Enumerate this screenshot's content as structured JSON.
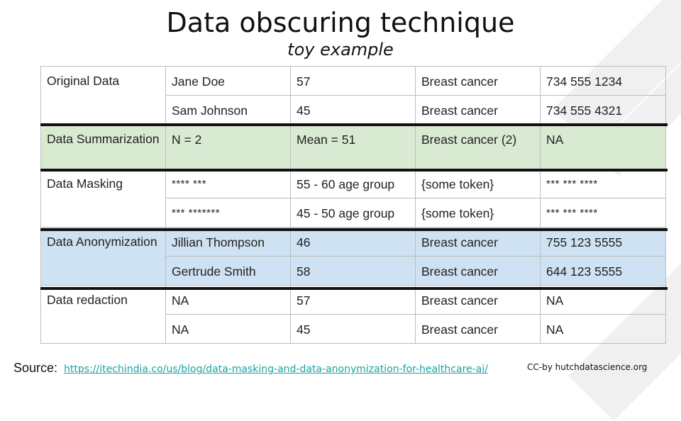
{
  "title": "Data obscuring technique",
  "subtitle": "toy example",
  "table": {
    "original": {
      "label": "Original Data",
      "rows": [
        [
          "Jane Doe",
          "57",
          "Breast cancer",
          "734 555 1234"
        ],
        [
          "Sam Johnson",
          "45",
          "Breast cancer",
          "734 555 4321"
        ]
      ]
    },
    "summarization": {
      "label": "Data Summarization",
      "rows": [
        [
          "N = 2",
          "Mean = 51",
          "Breast cancer (2)",
          "NA"
        ]
      ]
    },
    "masking": {
      "label": "Data Masking",
      "rows": [
        [
          "**** ***",
          "55 - 60 age group",
          "{some token}",
          "*** *** ****"
        ],
        [
          "*** *******",
          "45 - 50 age group",
          "{some token}",
          "*** *** ****"
        ]
      ]
    },
    "anonymization": {
      "label": "Data Anonymization",
      "rows": [
        [
          "Jillian Thompson",
          "46",
          "Breast cancer",
          "755 123 5555"
        ],
        [
          "Gertrude Smith",
          "58",
          "Breast cancer",
          "644 123 5555"
        ]
      ]
    },
    "redaction": {
      "label": "Data redaction",
      "rows": [
        [
          "NA",
          "57",
          "Breast cancer",
          "NA"
        ],
        [
          "NA",
          "45",
          "Breast cancer",
          "NA"
        ]
      ]
    }
  },
  "source": {
    "label": "Source:",
    "link": "https://itechindia.co/us/blog/data-masking-and-data-anonymization-for-healthcare-ai/"
  },
  "credit": "CC-by hutchdatascience.org",
  "colors": {
    "green": "#d9ead3",
    "blue": "#cfe2f3",
    "link": "#1aa3a3"
  }
}
